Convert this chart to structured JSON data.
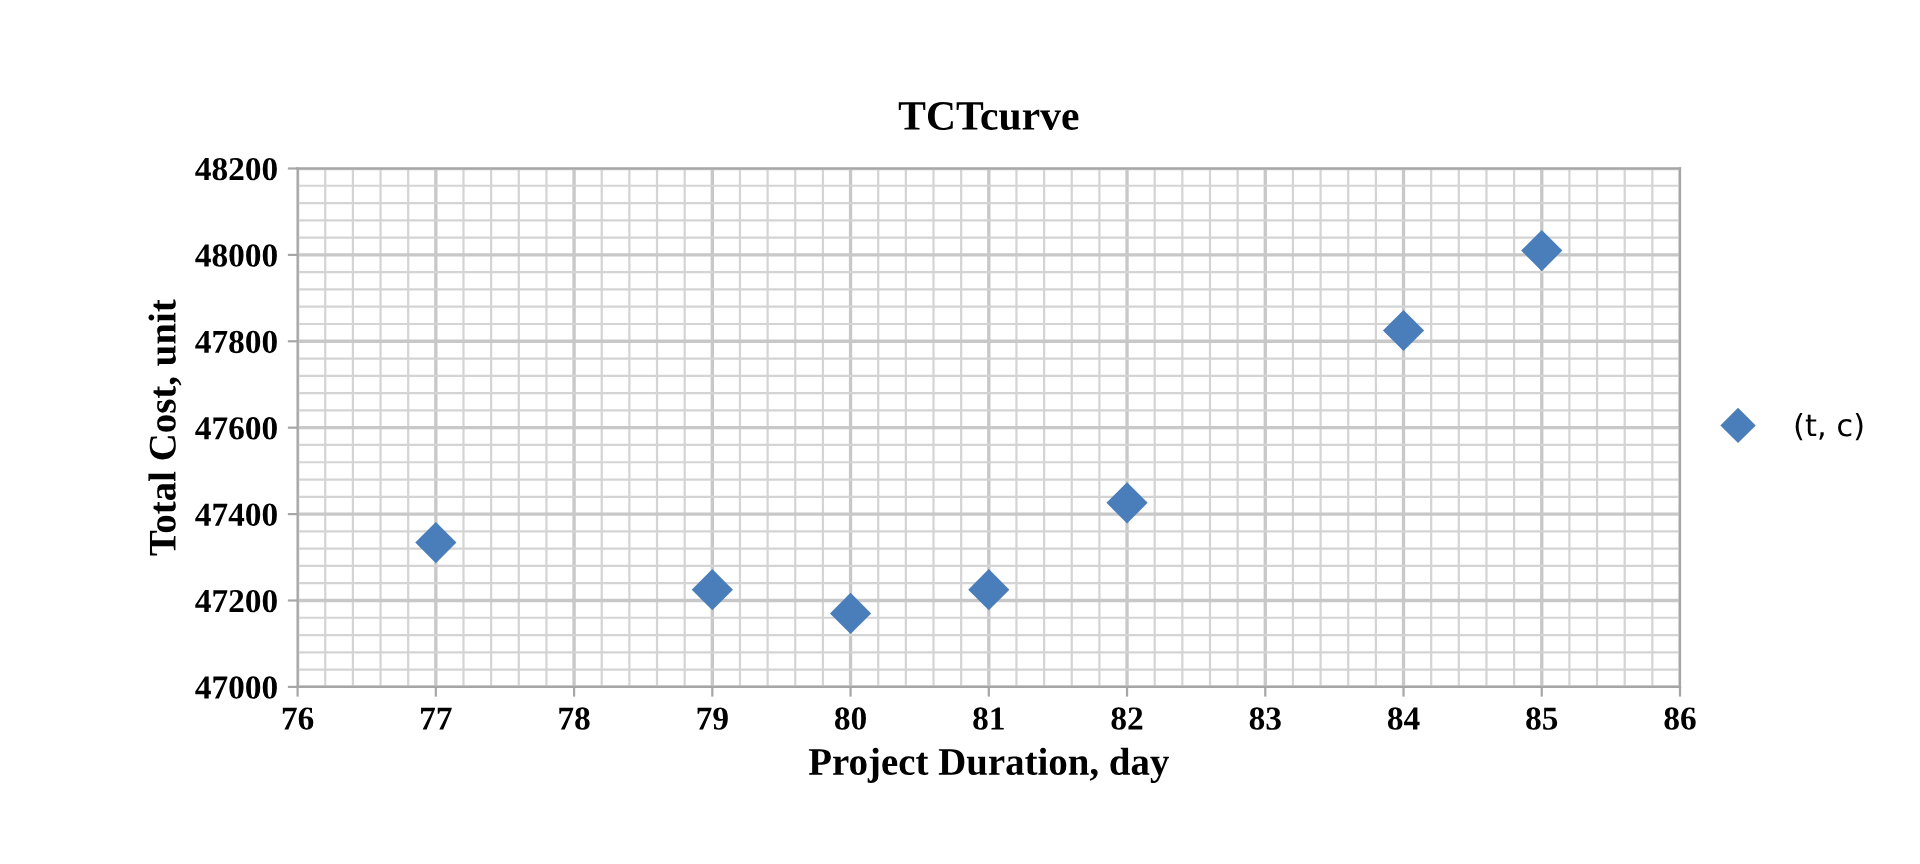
{
  "chart_data": {
    "type": "scatter",
    "title": "TCTcurve",
    "xlabel": "Project Duration, day",
    "ylabel": "Total Cost, unit",
    "x": [
      77,
      79,
      80,
      81,
      82,
      84,
      85
    ],
    "series": [
      {
        "name": "(t, c)",
        "color": "#4a7ebb",
        "values": [
          47334,
          47225,
          47170,
          47225,
          47426,
          47825,
          48010
        ]
      }
    ],
    "xlim": [
      76,
      86
    ],
    "xticks": [
      76,
      77,
      78,
      79,
      80,
      81,
      82,
      83,
      84,
      85,
      86
    ],
    "ylim": [
      47000,
      48200
    ],
    "yticks": [
      47000,
      47200,
      47400,
      47600,
      47800,
      48000,
      48200
    ],
    "grid": true,
    "legend": "right",
    "marker": "diamond"
  }
}
